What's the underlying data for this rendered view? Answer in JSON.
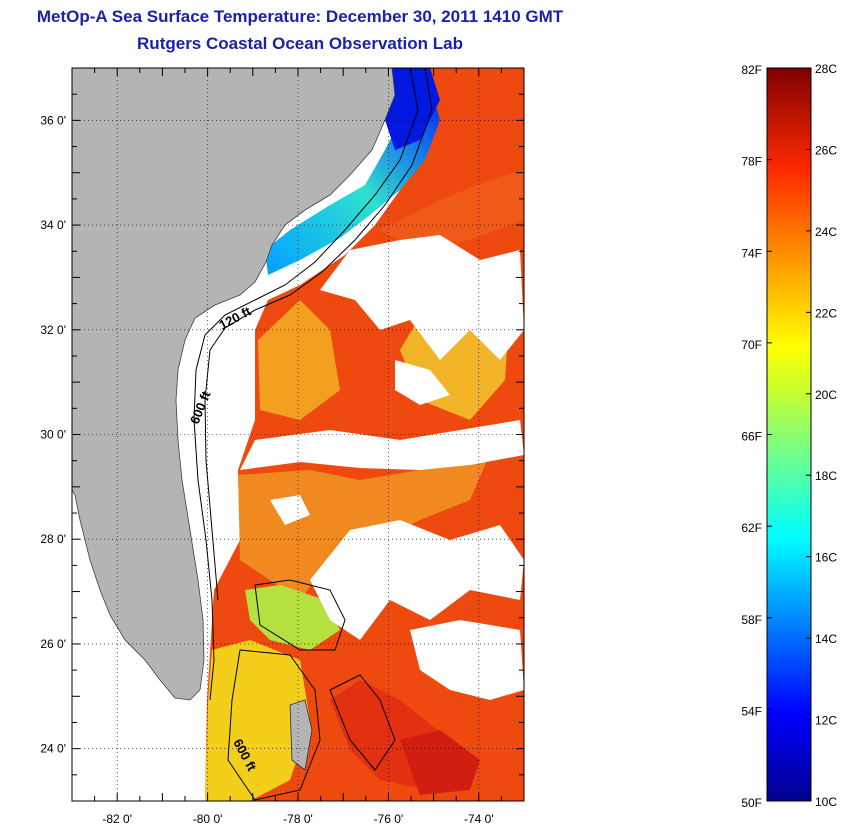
{
  "title": {
    "line1": "MetOp-A Sea Surface Temperature:  December 30, 2011 1410 GMT",
    "line2": "Rutgers Coastal Ocean Observation Lab"
  },
  "map": {
    "lon_range": [
      -83,
      -73
    ],
    "lat_range": [
      23,
      37
    ],
    "lon_ticks": [
      {
        "value": -82,
        "label": "-82 0'"
      },
      {
        "value": -80,
        "label": "-80 0'"
      },
      {
        "value": -78,
        "label": "-78 0'"
      },
      {
        "value": -76,
        "label": "-76 0'"
      },
      {
        "value": -74,
        "label": "-74 0'"
      }
    ],
    "lat_ticks": [
      {
        "value": 36,
        "label": "36 0'"
      },
      {
        "value": 34,
        "label": "34 0'"
      },
      {
        "value": 32,
        "label": "32 0'"
      },
      {
        "value": 30,
        "label": "30 0'"
      },
      {
        "value": 28,
        "label": "28 0'"
      },
      {
        "value": 26,
        "label": "26 0'"
      },
      {
        "value": 24,
        "label": "24 0'"
      }
    ],
    "grid": "dotted",
    "contour_labels": [
      "120 ft",
      "600 ft",
      "600 ft"
    ],
    "colors": {
      "land": "#b4b4b4",
      "cloud": "#ffffff",
      "warm_sea": "#ee4a10",
      "cool_sea": "#f3c217"
    }
  },
  "colorbar": {
    "range_c": [
      10,
      28
    ],
    "left_labels": [
      "82F",
      "78F",
      "74F",
      "70F",
      "66F",
      "62F",
      "58F",
      "54F",
      "50F"
    ],
    "right_labels": [
      "28C",
      "26C",
      "24C",
      "22C",
      "20C",
      "18C",
      "16C",
      "14C",
      "12C",
      "10C"
    ]
  }
}
